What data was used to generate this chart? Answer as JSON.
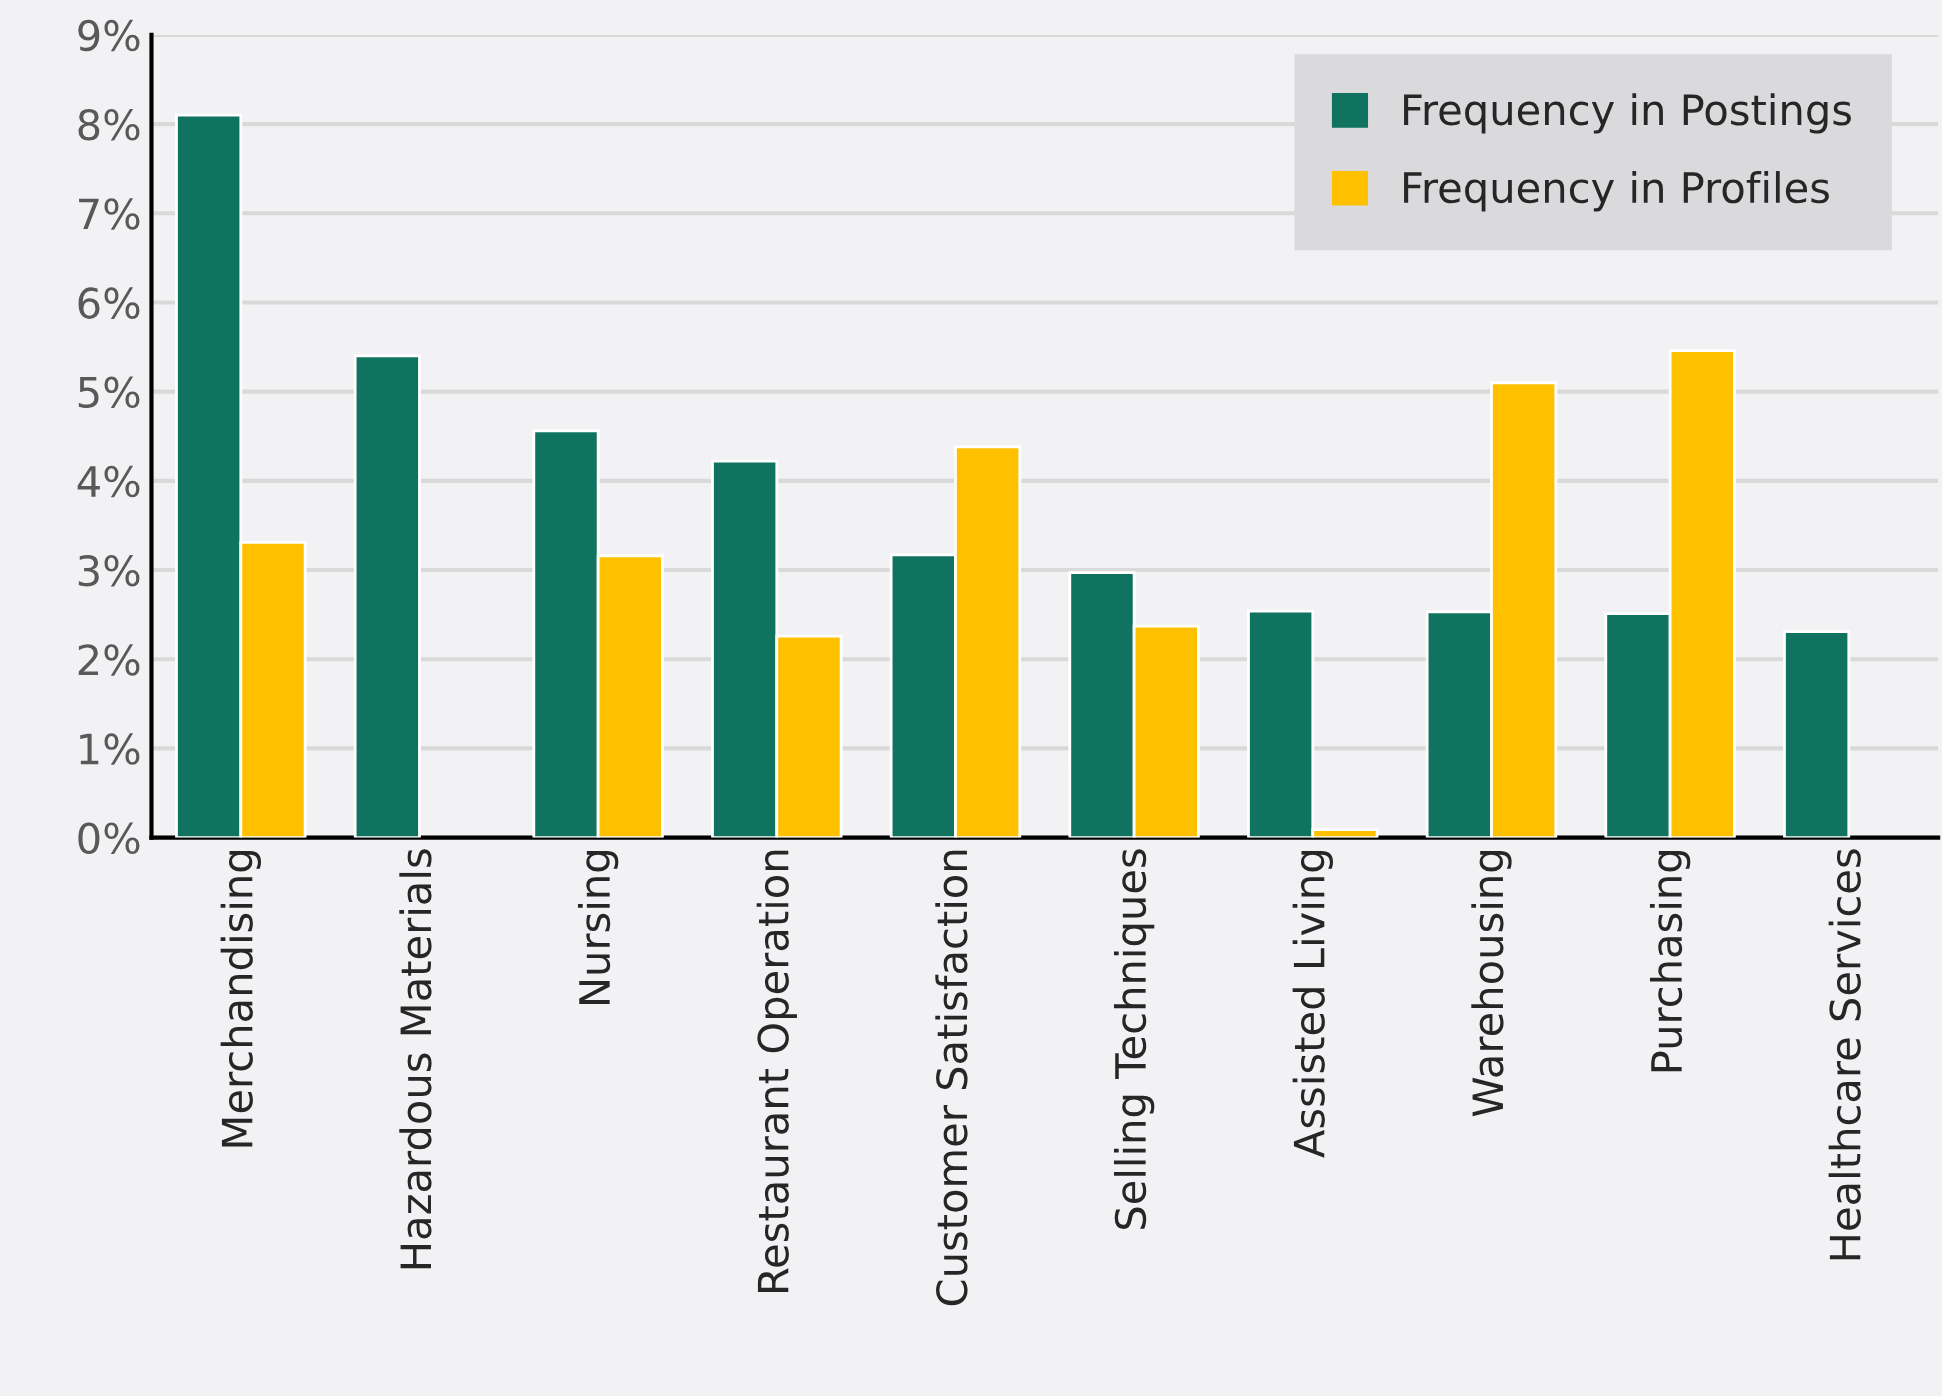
{
  "chart_data": {
    "type": "bar",
    "categories": [
      "Merchandising",
      "Hazardous Materials",
      "Nursing",
      "Restaurant Operation",
      "Customer Satisfaction",
      "Selling Techniques",
      "Assisted Living",
      "Warehousing",
      "Purchasing",
      "Healthcare Services"
    ],
    "series": [
      {
        "name": "Frequency in Postings",
        "color": "#107360",
        "values": [
          8.1,
          5.4,
          4.56,
          4.22,
          3.17,
          2.97,
          2.54,
          2.53,
          2.51,
          2.31
        ]
      },
      {
        "name": "Frequency in Profiles",
        "color": "#ffc000",
        "values": [
          3.31,
          null,
          3.16,
          2.26,
          4.38,
          2.37,
          0.09,
          5.1,
          5.46,
          null
        ]
      }
    ],
    "ylim": [
      0,
      9
    ],
    "yticks": [
      {
        "value": 0,
        "label": "0%"
      },
      {
        "value": 1,
        "label": "1%"
      },
      {
        "value": 2,
        "label": "2%"
      },
      {
        "value": 3,
        "label": "3%"
      },
      {
        "value": 4,
        "label": "4%"
      },
      {
        "value": 5,
        "label": "5%"
      },
      {
        "value": 6,
        "label": "6%"
      },
      {
        "value": 7,
        "label": "7%"
      },
      {
        "value": 8,
        "label": "8%"
      },
      {
        "value": 9,
        "label": "9%"
      }
    ],
    "grid": "y",
    "legend": "top right"
  }
}
